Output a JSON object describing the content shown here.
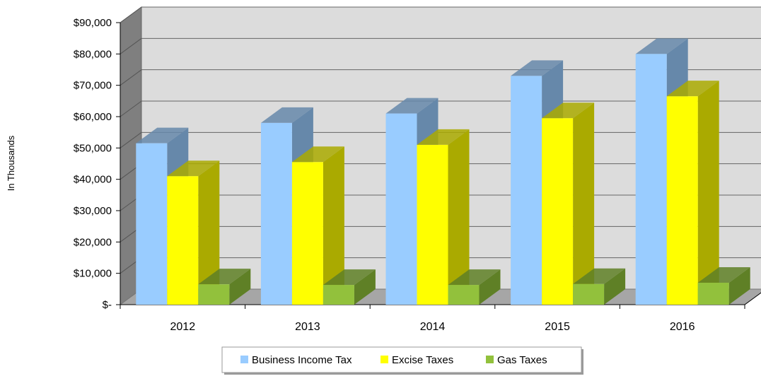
{
  "chart_data": {
    "type": "bar",
    "ylabel": "In Thousands",
    "categories": [
      "2012",
      "2013",
      "2014",
      "2015",
      "2016"
    ],
    "series": [
      {
        "name": "Business Income Tax",
        "values": [
          51500,
          58000,
          61000,
          73000,
          80000
        ],
        "color": "#99ccff",
        "side_color": "#6688aa"
      },
      {
        "name": "Excise Taxes",
        "values": [
          41000,
          45500,
          51000,
          59500,
          66500
        ],
        "color": "#ffff00",
        "side_color": "#aaaa00"
      },
      {
        "name": "Gas Taxes",
        "values": [
          6500,
          6300,
          6300,
          6600,
          7000
        ],
        "color": "#92c13c",
        "side_color": "#5f8026"
      }
    ],
    "ylim": [
      0,
      90000
    ],
    "yticks": [
      "$-",
      "$10,000",
      "$20,000",
      "$30,000",
      "$40,000",
      "$50,000",
      "$60,000",
      "$70,000",
      "$80,000",
      "$90,000"
    ],
    "grid": true,
    "legend_position": "bottom",
    "wall_color": "#dcdcdc",
    "floor_color": "#a6a6a6"
  }
}
